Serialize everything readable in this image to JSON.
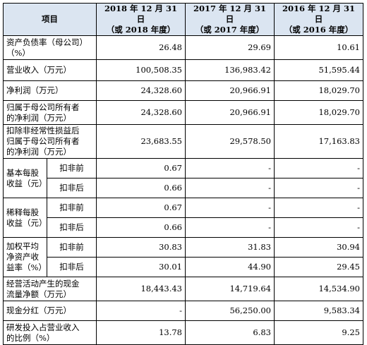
{
  "header": {
    "item": "项目",
    "col2018_line1": "2018 年 12 月 31 日",
    "col2018_line2": "（或 2018 年度）",
    "col2017_line1": "2017 年 12 月 31 日",
    "col2017_line2": "（或 2017 年度）",
    "col2016_line1": "2016 年 12 月 31 日",
    "col2016_line2": "（或 2016 年度）"
  },
  "rows": {
    "debt_ratio": {
      "label_line1": "资产负债率（母公司）",
      "label_line2": "（%）",
      "v2018": "26.48",
      "v2017": "29.69",
      "v2016": "10.61"
    },
    "revenue": {
      "label": "营业收入（万元）",
      "v2018": "100,508.35",
      "v2017": "136,983.42",
      "v2016": "51,595.44"
    },
    "net_profit": {
      "label": "净利润（万元）",
      "v2018": "24,328.60",
      "v2017": "20,966.91",
      "v2016": "18,029.70"
    },
    "parent_net_profit": {
      "label_line1": "归属于母公司所有者",
      "label_line2": "的净利润（万元）",
      "v2018": "24,328.60",
      "v2017": "20,966.91",
      "v2016": "18,029.70"
    },
    "parent_net_profit_adj": {
      "label_line1": "扣除非经常性损益后",
      "label_line2": "归属于母公司所有者",
      "label_line3": "的净利润（万元）",
      "v2018": "23,683.55",
      "v2017": "29,578.50",
      "v2016": "17,163.83"
    },
    "basic_eps": {
      "label_line1": "基本每股",
      "label_line2": "收益（元）",
      "before": {
        "sub": "扣非前",
        "v2018": "0.67",
        "v2017": "-",
        "v2016": "-"
      },
      "after": {
        "sub": "扣非后",
        "v2018": "0.66",
        "v2017": "-",
        "v2016": "-"
      }
    },
    "diluted_eps": {
      "label_line1": "稀释每股",
      "label_line2": "收益（元）",
      "before": {
        "sub": "扣非前",
        "v2018": "0.67",
        "v2017": "-",
        "v2016": "-"
      },
      "after": {
        "sub": "扣非后",
        "v2018": "0.66",
        "v2017": "-",
        "v2016": "-"
      }
    },
    "roe": {
      "label_line1": "加权平均",
      "label_line2": "净资产收",
      "label_line3": "益率（%）",
      "before": {
        "sub": "扣非前",
        "v2018": "30.83",
        "v2017": "31.83",
        "v2016": "30.94"
      },
      "after": {
        "sub": "扣非后",
        "v2018": "30.01",
        "v2017": "44.90",
        "v2016": "29.45"
      }
    },
    "op_cash_flow": {
      "label_line1": "经营活动产生的现金",
      "label_line2": "流量净额（万元）",
      "v2018": "18,443.43",
      "v2017": "14,719.64",
      "v2016": "14,534.90"
    },
    "cash_dividend": {
      "label": "现金分红（万元）",
      "v2018": "-",
      "v2017": "56,250.00",
      "v2016": "9,583.34"
    },
    "rd_ratio": {
      "label_line1": "研发投入占营业收入",
      "label_line2": "的比例（%）",
      "v2018": "13.78",
      "v2017": "6.83",
      "v2016": "9.25"
    }
  }
}
